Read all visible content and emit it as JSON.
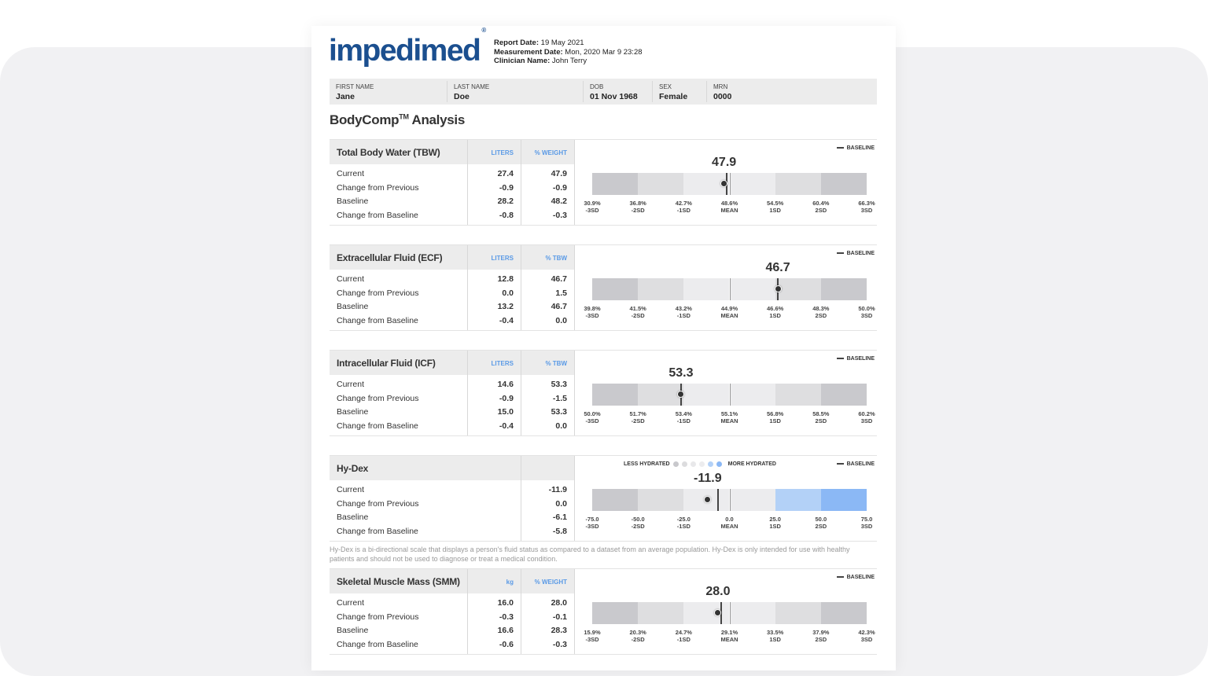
{
  "header": {
    "logo_text": "impedimed",
    "report_date_label": "Report Date:",
    "report_date": "19 May 2021",
    "measurement_date_label": "Measurement Date:",
    "measurement_date": "Mon, 2020 Mar 9 23:28",
    "clinician_label": "Clinician Name:",
    "clinician": "John Terry"
  },
  "patient": [
    {
      "label": "FIRST NAME",
      "value": "Jane"
    },
    {
      "label": "LAST NAME",
      "value": "Doe"
    },
    {
      "label": "DOB",
      "value": "01 Nov 1968"
    },
    {
      "label": "SEX",
      "value": "Female"
    },
    {
      "label": "MRN",
      "value": "0000"
    }
  ],
  "title": {
    "main": "BodyComp",
    "tm": "TM",
    "rest": " Analysis"
  },
  "row_labels": [
    "Current",
    "Change from Previous",
    "Baseline",
    "Change from Baseline"
  ],
  "legend_baseline": "BASELINE",
  "hydex_legend": {
    "less": "LESS HYDRATED",
    "more": "MORE HYDRATED",
    "dot_colors": [
      "#c8c8cc",
      "#dcdcde",
      "#e8e8ea",
      "#ececee",
      "#b3d1f7",
      "#8bb8f5"
    ]
  },
  "colors": {
    "accent": "#5a9ae6",
    "logo": "#1b4f8f",
    "outer_band": "#c9c9cd",
    "mid_band": "#dedee0",
    "inner_band": "#ececee",
    "hydex_plus1": "#b3d1f7",
    "hydex_plus2": "#8bb8f5"
  },
  "sections": [
    {
      "name": "Total Body Water (TBW)",
      "unit1": "LITERS",
      "unit2": "% WEIGHT",
      "col1": [
        "27.4",
        "-0.9",
        "28.2",
        "-0.8"
      ],
      "col2": [
        "47.9",
        "-0.9",
        "48.2",
        "-0.3"
      ],
      "value": 47.9,
      "baseline": 48.2,
      "ticks": [
        "30.9%",
        "36.8%",
        "42.7%",
        "48.6%",
        "54.5%",
        "60.4%",
        "66.3%"
      ],
      "tick_min": 30.9,
      "tick_max": 66.3
    },
    {
      "name": "Extracellular Fluid (ECF)",
      "unit1": "LITERS",
      "unit2": "% TBW",
      "col1": [
        "12.8",
        "0.0",
        "13.2",
        "-0.4"
      ],
      "col2": [
        "46.7",
        "1.5",
        "46.7",
        "0.0"
      ],
      "value": 46.7,
      "baseline": 46.7,
      "ticks": [
        "39.8%",
        "41.5%",
        "43.2%",
        "44.9%",
        "46.6%",
        "48.3%",
        "50.0%"
      ],
      "tick_min": 39.8,
      "tick_max": 50.0
    },
    {
      "name": "Intracellular Fluid (ICF)",
      "unit1": "LITERS",
      "unit2": "% TBW",
      "col1": [
        "14.6",
        "-0.9",
        "15.0",
        "-0.4"
      ],
      "col2": [
        "53.3",
        "-1.5",
        "53.3",
        "0.0"
      ],
      "value": 53.3,
      "baseline": 53.3,
      "ticks": [
        "50.0%",
        "51.7%",
        "53.4%",
        "55.1%",
        "56.8%",
        "58.5%",
        "60.2%"
      ],
      "tick_min": 50.0,
      "tick_max": 60.2
    },
    {
      "name": "Hy-Dex",
      "unit1": "",
      "unit2": "",
      "hydex": true,
      "col1": [
        "",
        "",
        "",
        ""
      ],
      "col2": [
        "-11.9",
        "0.0",
        "-6.1",
        "-5.8"
      ],
      "value": -11.9,
      "baseline": -6.1,
      "ticks": [
        "-75.0",
        "-50.0",
        "-25.0",
        "0.0",
        "25.0",
        "50.0",
        "75.0"
      ],
      "tick_min": -75.0,
      "tick_max": 75.0
    },
    {
      "name": "Skeletal Muscle Mass (SMM)",
      "unit1": "kg",
      "unit2": "% WEIGHT",
      "col1": [
        "16.0",
        "-0.3",
        "16.6",
        "-0.6"
      ],
      "col2": [
        "28.0",
        "-0.1",
        "28.3",
        "-0.3"
      ],
      "value": 28.0,
      "baseline": 28.3,
      "ticks": [
        "15.9%",
        "20.3%",
        "24.7%",
        "29.1%",
        "33.5%",
        "37.9%",
        "42.3%"
      ],
      "tick_min": 15.9,
      "tick_max": 42.3
    }
  ],
  "sd_labels": [
    "-3SD",
    "-2SD",
    "-1SD",
    "MEAN",
    "1SD",
    "2SD",
    "3SD"
  ],
  "footnote": "Hy-Dex is a bi-directional scale that displays a person's fluid status as compared to a dataset from an average population. Hy-Dex is only intended for use with healthy patients and should not be used to diagnose or treat a medical condition."
}
